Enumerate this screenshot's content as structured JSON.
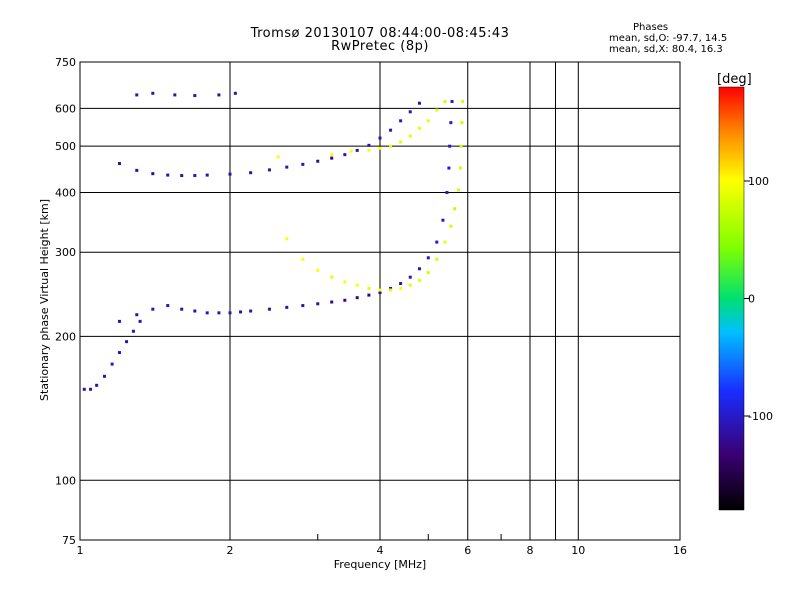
{
  "title": "Tromsø 20130107 08:44:00-08:45:43",
  "subtitle": "RwPretec (8p)",
  "phase_info": {
    "title": "Phases",
    "o_line": "mean, sd,O: -97.7, 14.5",
    "x_line": "mean, sd,X:  80.4, 16.3"
  },
  "chart_data": {
    "type": "scatter",
    "xlabel": "Frequency [MHz]",
    "ylabel": "Stationary phase Virtual Height [km]",
    "x_scale": "log",
    "y_scale": "log",
    "xlim": [
      1,
      16
    ],
    "ylim": [
      75,
      750
    ],
    "x_ticks": [
      1,
      2,
      4,
      6,
      8,
      10,
      16
    ],
    "x_tick_labels": [
      "1",
      "2",
      "4",
      "6",
      "8",
      "10",
      "16"
    ],
    "y_ticks": [
      75,
      100,
      200,
      300,
      400,
      500,
      600,
      750
    ],
    "y_tick_labels": [
      "75",
      "100",
      "200",
      "300",
      "400",
      "500",
      "600",
      "750"
    ],
    "grid": true,
    "colorbar": {
      "label": "[deg]",
      "range": [
        -180,
        180
      ],
      "ticks": [
        100,
        0,
        -100
      ],
      "tick_labels": [
        "100",
        "0",
        "-100"
      ]
    },
    "series": [
      {
        "points": [
          [
            1.02,
            155,
            -110
          ],
          [
            1.05,
            155,
            -110
          ],
          [
            1.08,
            158,
            -110
          ],
          [
            1.12,
            165,
            -110
          ],
          [
            1.16,
            175,
            -105
          ],
          [
            1.2,
            185,
            -110
          ],
          [
            1.24,
            195,
            -105
          ],
          [
            1.28,
            205,
            -110
          ],
          [
            1.32,
            215,
            -110
          ],
          [
            1.2,
            215,
            -115
          ],
          [
            1.3,
            222,
            -110
          ],
          [
            1.4,
            228,
            -105
          ],
          [
            1.5,
            232,
            -110
          ],
          [
            1.6,
            228,
            -110
          ],
          [
            1.7,
            226,
            -110
          ],
          [
            1.8,
            224,
            -110
          ],
          [
            1.9,
            224,
            -110
          ],
          [
            2.0,
            224,
            -105
          ],
          [
            2.1,
            225,
            -110
          ],
          [
            2.2,
            226,
            -110
          ],
          [
            2.4,
            228,
            -110
          ],
          [
            2.6,
            230,
            -110
          ],
          [
            2.8,
            232,
            -110
          ],
          [
            3.0,
            234,
            -110
          ],
          [
            3.2,
            236,
            -120
          ],
          [
            3.4,
            238,
            -125
          ],
          [
            3.6,
            241,
            -125
          ],
          [
            3.8,
            244,
            -130
          ],
          [
            4.0,
            247,
            -120
          ],
          [
            4.2,
            252,
            -110
          ],
          [
            4.4,
            258,
            -110
          ],
          [
            4.6,
            266,
            -105
          ],
          [
            4.8,
            277,
            -110
          ],
          [
            5.0,
            292,
            -105
          ],
          [
            5.2,
            315,
            -100
          ],
          [
            5.35,
            350,
            -100
          ],
          [
            5.45,
            400,
            -100
          ],
          [
            5.5,
            450,
            -105
          ],
          [
            5.52,
            500,
            -100
          ],
          [
            5.55,
            560,
            -100
          ],
          [
            5.58,
            620,
            -100
          ],
          [
            1.2,
            460,
            -110
          ],
          [
            1.3,
            445,
            -115
          ],
          [
            1.4,
            438,
            -120
          ],
          [
            1.5,
            435,
            -115
          ],
          [
            1.6,
            434,
            -115
          ],
          [
            1.7,
            434,
            -110
          ],
          [
            1.8,
            435,
            -110
          ],
          [
            2.0,
            437,
            -110
          ],
          [
            2.2,
            440,
            -110
          ],
          [
            2.4,
            446,
            -110
          ],
          [
            2.6,
            452,
            -110
          ],
          [
            2.8,
            458,
            -105
          ],
          [
            3.0,
            465,
            -120
          ],
          [
            3.2,
            472,
            -125
          ],
          [
            3.4,
            480,
            -110
          ],
          [
            3.6,
            490,
            -110
          ],
          [
            3.8,
            502,
            -110
          ],
          [
            4.0,
            520,
            -105
          ],
          [
            4.2,
            540,
            -105
          ],
          [
            4.4,
            565,
            -105
          ],
          [
            4.6,
            590,
            -110
          ],
          [
            4.8,
            615,
            -110
          ],
          [
            1.55,
            640,
            -110
          ],
          [
            1.7,
            638,
            -110
          ],
          [
            1.9,
            640,
            -110
          ],
          [
            2.05,
            645,
            -110
          ],
          [
            1.3,
            640,
            -110
          ],
          [
            1.4,
            645,
            -110
          ]
        ]
      },
      {
        "points": [
          [
            2.6,
            320,
            100
          ],
          [
            2.8,
            290,
            100
          ],
          [
            3.0,
            275,
            100
          ],
          [
            3.2,
            266,
            90
          ],
          [
            3.4,
            260,
            100
          ],
          [
            3.6,
            256,
            100
          ],
          [
            3.8,
            252,
            90
          ],
          [
            4.0,
            250,
            100
          ],
          [
            4.2,
            250,
            90
          ],
          [
            4.4,
            252,
            100
          ],
          [
            4.6,
            256,
            90
          ],
          [
            4.8,
            262,
            90
          ],
          [
            5.0,
            272,
            80
          ],
          [
            5.2,
            290,
            80
          ],
          [
            5.4,
            315,
            90
          ],
          [
            5.55,
            340,
            80
          ],
          [
            5.65,
            370,
            70
          ],
          [
            5.75,
            405,
            80
          ],
          [
            5.8,
            450,
            80
          ],
          [
            5.82,
            500,
            80
          ],
          [
            5.84,
            560,
            80
          ],
          [
            5.86,
            620,
            80
          ],
          [
            3.8,
            490,
            100
          ],
          [
            4.0,
            495,
            100
          ],
          [
            4.2,
            500,
            90
          ],
          [
            4.4,
            510,
            90
          ],
          [
            4.6,
            525,
            90
          ],
          [
            4.8,
            545,
            90
          ],
          [
            5.0,
            565,
            90
          ],
          [
            5.2,
            595,
            90
          ],
          [
            5.4,
            620,
            80
          ],
          [
            3.2,
            480,
            100
          ],
          [
            3.5,
            488,
            100
          ],
          [
            2.5,
            475,
            100
          ]
        ]
      }
    ]
  }
}
